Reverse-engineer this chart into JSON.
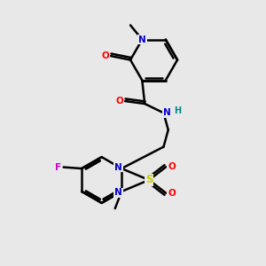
{
  "bg_color": "#e8e8e8",
  "atom_colors": {
    "C": "#000000",
    "N": "#0000cc",
    "O": "#ff0000",
    "S": "#cccc00",
    "F": "#cc00cc",
    "H": "#008888"
  },
  "bond_color": "#000000",
  "bond_width": 1.8,
  "figsize": [
    3.0,
    3.0
  ],
  "dpi": 100
}
